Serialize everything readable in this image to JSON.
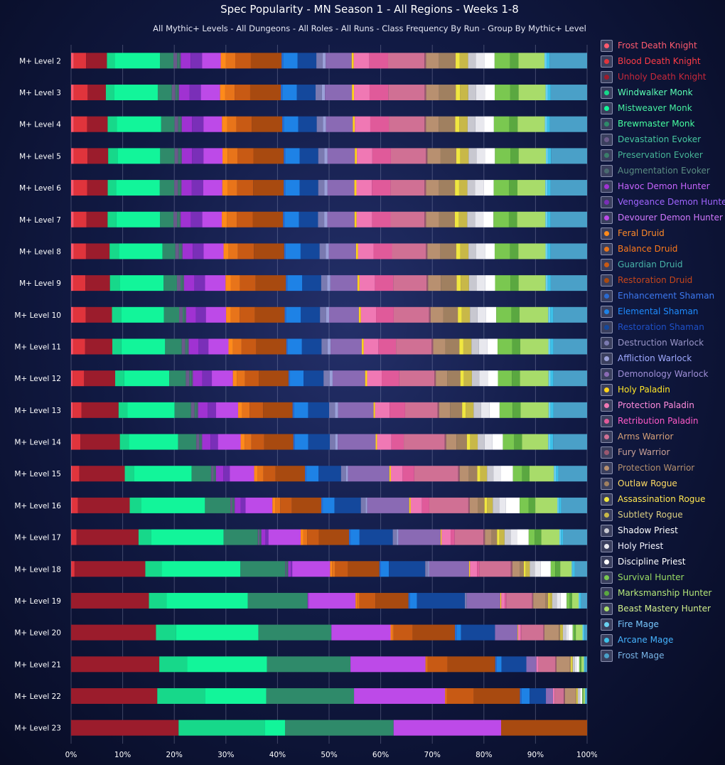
{
  "chart_data": {
    "type": "bar",
    "orientation": "horizontal",
    "stacked": true,
    "normalized": true,
    "title": "Spec Popularity - MN Season 1 - All Regions - Weeks 1-8",
    "subtitle": "All Mythic+ Levels - All Dungeons - All Roles - All Runs - Class Frequency By Run - Group By Mythic+ Level",
    "categories": [
      "M+ Level 2",
      "M+ Level 3",
      "M+ Level 4",
      "M+ Level 5",
      "M+ Level 6",
      "M+ Level 7",
      "M+ Level 8",
      "M+ Level 9",
      "M+ Level 10",
      "M+ Level 11",
      "M+ Level 12",
      "M+ Level 13",
      "M+ Level 14",
      "M+ Level 15",
      "M+ Level 16",
      "M+ Level 17",
      "M+ Level 18",
      "M+ Level 19",
      "M+ Level 20",
      "M+ Level 21",
      "M+ Level 22",
      "M+ Level 23"
    ],
    "xlim": [
      0,
      100
    ],
    "x_ticks": [
      "0%",
      "10%",
      "20%",
      "30%",
      "40%",
      "50%",
      "60%",
      "70%",
      "80%",
      "90%",
      "100%"
    ],
    "grid": true,
    "legend_position": "right",
    "series": [
      {
        "name": "Frost Death Knight",
        "color": "#ff5a6e",
        "values": [
          0.5,
          0.5,
          0.5,
          0.5,
          0.5,
          0.5,
          0.5,
          0.4,
          0.4,
          0.4,
          0.3,
          0.3,
          0.2,
          0.2,
          0.2,
          0.1,
          0.1,
          0,
          0,
          0,
          0,
          0
        ]
      },
      {
        "name": "Blood Death Knight",
        "color": "#e0343c",
        "values": [
          2.4,
          2.7,
          2.6,
          2.7,
          2.6,
          2.5,
          2.4,
          2.4,
          2.5,
          2.4,
          2.3,
          1.8,
          1.7,
          1.5,
          1.2,
          1.0,
          0.6,
          0,
          0,
          0,
          0,
          0
        ]
      },
      {
        "name": "Unholy Death Knight",
        "color": "#9b1c2c",
        "values": [
          4.0,
          3.5,
          4.0,
          4.0,
          4.0,
          4.1,
          4.6,
          4.8,
          5.2,
          5.4,
          6.2,
          7.4,
          8.0,
          9.3,
          10.6,
          12.3,
          14.2,
          15.6,
          16.5,
          16.7,
          15.9,
          20.0
        ]
      },
      {
        "name": "Windwalker Monk",
        "color": "#17d88a",
        "values": [
          1.5,
          1.6,
          1.8,
          1.8,
          1.6,
          1.7,
          1.8,
          1.9,
          1.8,
          1.8,
          1.8,
          1.8,
          1.8,
          1.9,
          2.4,
          2.5,
          3.3,
          3.5,
          3.9,
          5.3,
          8.8,
          16.0
        ]
      },
      {
        "name": "Mistweaver Monk",
        "color": "#12f59a",
        "values": [
          8.7,
          8.4,
          8.6,
          8.3,
          8.5,
          8.5,
          8.5,
          8.6,
          8.5,
          8.7,
          9.0,
          9.4,
          10.0,
          11.8,
          13.0,
          14.4,
          15.8,
          16.3,
          16.0,
          15.1,
          11.3,
          3.8
        ]
      },
      {
        "name": "Brewmaster Monk",
        "color": "#2f8a6a",
        "values": [
          2.6,
          2.7,
          2.6,
          2.8,
          2.8,
          2.6,
          2.5,
          2.6,
          3.0,
          3.3,
          3.3,
          3.3,
          3.7,
          4.0,
          5.2,
          6.8,
          9.0,
          12.0,
          14.2,
          15.8,
          16.2,
          20.2
        ]
      },
      {
        "name": "Devastation Evoker",
        "color": "#6a5a8a",
        "values": [
          0.7,
          0.7,
          0.7,
          0.7,
          0.7,
          0.7,
          0.7,
          0.7,
          0.7,
          0.7,
          0.7,
          0.7,
          0.6,
          0.5,
          0.4,
          0.3,
          0.2,
          0,
          0,
          0,
          0,
          0
        ]
      },
      {
        "name": "Preservation Evoker",
        "color": "#3b7d6a",
        "values": [
          0.4,
          0.4,
          0.4,
          0.4,
          0.4,
          0.4,
          0.4,
          0.4,
          0.4,
          0.4,
          0.4,
          0.4,
          0.3,
          0.3,
          0.3,
          0.2,
          0.2,
          0,
          0,
          0,
          0,
          0
        ]
      },
      {
        "name": "Augmentation Evoker",
        "color": "#4a6a70",
        "values": [
          0.3,
          0.3,
          0.3,
          0.3,
          0.3,
          0.3,
          0.3,
          0.3,
          0.3,
          0.3,
          0.3,
          0.3,
          0.3,
          0.2,
          0.2,
          0.2,
          0.2,
          0,
          0,
          0,
          0,
          0
        ]
      },
      {
        "name": "Havoc Demon Hunter",
        "color": "#a032d2",
        "values": [
          1.9,
          2.0,
          2.0,
          2.0,
          2.0,
          2.0,
          2.0,
          2.0,
          1.9,
          1.9,
          1.9,
          1.9,
          1.7,
          1.5,
          1.2,
          0.8,
          0.5,
          0.2,
          0,
          0,
          0,
          0
        ]
      },
      {
        "name": "Vengeance Demon Hunter",
        "color": "#7a2fb8",
        "values": [
          2.2,
          2.2,
          2.2,
          2.2,
          2.2,
          2.2,
          2.1,
          2.1,
          2.0,
          2.0,
          1.9,
          1.7,
          1.5,
          1.3,
          1.0,
          0.6,
          0.3,
          0,
          0,
          0,
          0,
          0
        ]
      },
      {
        "name": "Devourer Demon Hunter",
        "color": "#bd4ae8",
        "values": [
          3.6,
          3.7,
          3.6,
          3.7,
          3.7,
          3.8,
          3.9,
          4.0,
          4.0,
          4.0,
          4.2,
          4.4,
          4.6,
          5.0,
          5.5,
          6.4,
          7.6,
          9.4,
          11.5,
          14.2,
          16.8,
          20.0
        ]
      },
      {
        "name": "Feral Druid",
        "color": "#ff8a1a",
        "values": [
          1.0,
          1.0,
          1.0,
          1.0,
          1.0,
          1.0,
          1.0,
          1.0,
          0.9,
          0.9,
          0.8,
          0.8,
          0.8,
          0.7,
          0.6,
          0.5,
          0.4,
          0.3,
          0.2,
          0.1,
          0.1,
          0
        ]
      },
      {
        "name": "Balance Druid",
        "color": "#e8741a",
        "values": [
          1.8,
          1.8,
          1.8,
          1.9,
          1.9,
          1.9,
          1.8,
          1.8,
          1.8,
          1.7,
          1.6,
          1.5,
          1.4,
          1.2,
          1.0,
          0.8,
          0.6,
          0.5,
          0.4,
          0.3,
          0.2,
          0
        ]
      },
      {
        "name": "Guardian Druid",
        "color": "#c85a14",
        "values": [
          3.0,
          3.0,
          3.0,
          3.1,
          3.1,
          3.1,
          3.1,
          3.1,
          3.0,
          2.9,
          2.8,
          2.7,
          2.6,
          2.5,
          2.4,
          2.3,
          2.6,
          3.2,
          3.7,
          3.8,
          5.0,
          0
        ]
      },
      {
        "name": "Restoration Druid",
        "color": "#a84a10",
        "values": [
          5.9,
          5.9,
          5.9,
          5.9,
          5.9,
          5.9,
          5.9,
          5.9,
          5.9,
          6.0,
          5.9,
          5.9,
          5.9,
          6.0,
          6.0,
          6.0,
          6.3,
          6.6,
          8.2,
          9.0,
          8.5,
          16.0
        ]
      },
      {
        "name": "Enhancement Shaman",
        "color": "#2a6ad0",
        "values": [
          0.3,
          0.3,
          0.3,
          0.3,
          0.3,
          0.3,
          0.3,
          0.3,
          0.3,
          0.3,
          0.3,
          0.3,
          0.3,
          0.3,
          0.3,
          0.3,
          0.3,
          0.3,
          0.3,
          0.3,
          0.3,
          0
        ]
      },
      {
        "name": "Elemental Shaman",
        "color": "#1e82e6",
        "values": [
          2.8,
          2.8,
          2.8,
          2.8,
          2.8,
          2.8,
          2.9,
          2.9,
          2.9,
          2.8,
          2.7,
          2.8,
          2.7,
          2.5,
          2.4,
          1.8,
          1.6,
          1.4,
          0.9,
          0.9,
          1.5,
          0
        ]
      },
      {
        "name": "Restoration Shaman",
        "color": "#14489c",
        "values": [
          3.6,
          3.6,
          3.6,
          3.6,
          3.6,
          3.7,
          3.7,
          3.7,
          3.8,
          3.9,
          4.0,
          4.2,
          4.4,
          4.6,
          5.4,
          6.6,
          7.3,
          9.6,
          6.6,
          4.7,
          3.0,
          0
        ]
      },
      {
        "name": "Destruction Warlock",
        "color": "#7a7ab0",
        "values": [
          1.2,
          1.2,
          1.2,
          1.2,
          1.2,
          1.2,
          1.2,
          1.2,
          1.2,
          1.2,
          1.2,
          1.2,
          1.1,
          1.0,
          1.0,
          0.8,
          0.6,
          0.4,
          0,
          0,
          0,
          0
        ]
      },
      {
        "name": "Affliction Warlock",
        "color": "#9aa0d8",
        "values": [
          0.6,
          0.6,
          0.6,
          0.6,
          0.6,
          0.6,
          0.6,
          0.6,
          0.6,
          0.6,
          0.6,
          0.6,
          0.5,
          0.4,
          0.3,
          0.3,
          0.2,
          0,
          0,
          0,
          0,
          0
        ]
      },
      {
        "name": "Demonology Warlock",
        "color": "#8a6ab4",
        "values": [
          5.0,
          5.2,
          5.2,
          5.3,
          5.2,
          5.3,
          5.3,
          5.3,
          5.9,
          6.2,
          6.5,
          7.1,
          7.7,
          8.5,
          8.6,
          8.4,
          8.0,
          6.7,
          4.4,
          1.9,
          1.3,
          0
        ]
      },
      {
        "name": "Holy Paladin",
        "color": "#ffd21a",
        "values": [
          0.4,
          0.4,
          0.4,
          0.4,
          0.4,
          0.4,
          0.4,
          0.4,
          0.4,
          0.4,
          0.4,
          0.3,
          0.3,
          0.3,
          0.3,
          0.2,
          0.2,
          0.2,
          0.1,
          0,
          0,
          0
        ]
      },
      {
        "name": "Protection Paladin",
        "color": "#f078b4",
        "values": [
          3.0,
          3.0,
          3.0,
          3.0,
          3.0,
          3.0,
          3.0,
          3.0,
          3.0,
          2.9,
          2.9,
          2.9,
          2.9,
          2.4,
          2.3,
          1.8,
          1.4,
          0.7,
          0.5,
          0.4,
          0.3,
          0
        ]
      },
      {
        "name": "Retribution Paladin",
        "color": "#e05a9a",
        "values": [
          3.6,
          3.6,
          3.6,
          3.6,
          3.6,
          3.6,
          3.6,
          3.6,
          3.5,
          3.5,
          3.5,
          3.1,
          2.5,
          2.4,
          1.5,
          0.8,
          0.5,
          0.3,
          0.1,
          0,
          0,
          0
        ]
      },
      {
        "name": "Arms Warrior",
        "color": "#d07094",
        "values": [
          7.0,
          7.0,
          6.9,
          6.8,
          6.6,
          6.6,
          6.6,
          6.5,
          7.0,
          7.1,
          7.0,
          6.5,
          8.3,
          9.0,
          8.0,
          5.7,
          6.3,
          5.2,
          4.3,
          3.2,
          1.7,
          0
        ]
      },
      {
        "name": "Fury Warrior",
        "color": "#9a5870",
        "values": [
          0.3,
          0.3,
          0.3,
          0.3,
          0.3,
          0.3,
          0.3,
          0.3,
          0.3,
          0.3,
          0.3,
          0.3,
          0.3,
          0.3,
          0.3,
          0.3,
          0.3,
          0.2,
          0.2,
          0.2,
          0.2,
          0
        ]
      },
      {
        "name": "Protection Warrior",
        "color": "#b89070",
        "values": [
          2.5,
          2.5,
          2.5,
          2.5,
          2.5,
          2.5,
          2.5,
          2.5,
          2.5,
          2.4,
          2.3,
          2.2,
          2.1,
          1.9,
          1.6,
          1.3,
          1.5,
          2.5,
          2.8,
          2.5,
          2.0,
          0
        ]
      },
      {
        "name": "Outlaw Rogue",
        "color": "#a08060",
        "values": [
          3.2,
          3.2,
          3.2,
          3.1,
          3.1,
          3.1,
          3.1,
          3.1,
          2.9,
          2.8,
          2.6,
          2.4,
          2.1,
          1.7,
          1.4,
          1.1,
          0.8,
          0.5,
          0.3,
          0.2,
          0.1,
          0
        ]
      },
      {
        "name": "Assassination Rogue",
        "color": "#f0e640",
        "values": [
          0.8,
          0.8,
          0.8,
          0.8,
          0.8,
          0.8,
          0.8,
          0.8,
          0.8,
          0.8,
          0.7,
          0.7,
          0.7,
          0.6,
          0.5,
          0.5,
          0.4,
          0.3,
          0.2,
          0.2,
          0.1,
          0
        ]
      },
      {
        "name": "Subtlety Rogue",
        "color": "#c8b848",
        "values": [
          1.6,
          1.6,
          1.6,
          1.6,
          1.6,
          1.6,
          1.6,
          1.6,
          1.6,
          1.6,
          1.6,
          1.6,
          1.5,
          1.4,
          1.2,
          1.0,
          0.8,
          0.5,
          0.3,
          0.2,
          0.2,
          0
        ]
      },
      {
        "name": "Shadow Priest",
        "color": "#c8c8d0",
        "values": [
          1.5,
          1.5,
          1.5,
          1.5,
          1.5,
          1.5,
          1.5,
          1.5,
          1.5,
          1.5,
          1.5,
          1.5,
          1.4,
          1.3,
          1.3,
          1.2,
          1.0,
          0.9,
          0.6,
          0.4,
          0.3,
          0
        ]
      },
      {
        "name": "Holy Priest",
        "color": "#e8e8ee",
        "values": [
          1.7,
          1.7,
          1.7,
          1.7,
          1.7,
          1.7,
          1.7,
          1.7,
          1.7,
          1.7,
          1.7,
          1.7,
          1.6,
          1.5,
          1.4,
          1.3,
          1.2,
          0.8,
          0.5,
          0.3,
          0.2,
          0
        ]
      },
      {
        "name": "Discipline Priest",
        "color": "#ffffff",
        "values": [
          1.9,
          1.9,
          1.9,
          1.9,
          1.9,
          1.9,
          1.9,
          1.9,
          2.0,
          2.0,
          2.0,
          2.0,
          2.1,
          2.5,
          2.8,
          2.3,
          2.0,
          1.2,
          0.8,
          0.5,
          0.3,
          0
        ]
      },
      {
        "name": "Survival Hunter",
        "color": "#7ac850",
        "values": [
          3.0,
          3.0,
          3.0,
          3.0,
          3.0,
          3.0,
          3.0,
          3.0,
          3.0,
          2.9,
          2.8,
          2.6,
          2.3,
          1.9,
          1.8,
          1.2,
          0.9,
          0.6,
          0.3,
          0.2,
          0.1,
          0
        ]
      },
      {
        "name": "Marksmanship Hunter",
        "color": "#5aa840",
        "values": [
          1.6,
          1.6,
          1.6,
          1.6,
          1.6,
          1.6,
          1.6,
          1.6,
          1.6,
          1.6,
          1.6,
          1.6,
          1.6,
          1.5,
          1.4,
          1.3,
          1.0,
          0.5,
          0.3,
          0.2,
          0.1,
          0
        ]
      },
      {
        "name": "Beast Mastery Hunter",
        "color": "#a8dc6a",
        "values": [
          5.0,
          5.2,
          5.3,
          5.3,
          5.4,
          5.5,
          5.3,
          5.3,
          5.7,
          5.6,
          5.7,
          5.6,
          5.3,
          5.0,
          4.5,
          3.6,
          2.3,
          1.3,
          1.3,
          0.5,
          0.3,
          0
        ]
      },
      {
        "name": "Fire Mage",
        "color": "#6ad0f0",
        "values": [
          0.4,
          0.4,
          0.4,
          0.4,
          0.4,
          0.4,
          0.4,
          0.4,
          0.4,
          0.4,
          0.4,
          0.4,
          0.4,
          0.4,
          0.3,
          0.3,
          0.2,
          0.2,
          0.2,
          0.1,
          0.1,
          0
        ]
      },
      {
        "name": "Arcane Mage",
        "color": "#3cc0e8",
        "values": [
          0.6,
          0.6,
          0.6,
          0.6,
          0.6,
          0.6,
          0.6,
          0.6,
          0.6,
          0.6,
          0.6,
          0.6,
          0.6,
          0.5,
          0.5,
          0.4,
          0.4,
          0.3,
          0.2,
          0.2,
          0.1,
          0
        ]
      },
      {
        "name": "Frost Mage",
        "color": "#4aa0c8",
        "values": [
          7.2,
          7.0,
          7.2,
          7.0,
          7.1,
          7.1,
          7.1,
          7.1,
          6.7,
          6.7,
          6.7,
          6.7,
          6.9,
          5.9,
          5.3,
          4.8,
          2.5,
          1.2,
          0.5,
          0.3,
          0.2,
          0
        ]
      }
    ]
  },
  "legend": {
    "text_colors": [
      "#ff5a6e",
      "#ff3c46",
      "#c8283a",
      "#5affb4",
      "#46f0a0",
      "#46ffa0",
      "#46c8a0",
      "#46b496",
      "#5a8c82",
      "#c864ff",
      "#a064ff",
      "#d278ff",
      "#ff8a28",
      "#ff7a1a",
      "#48b4a8",
      "#c8461a",
      "#3c78f0",
      "#1e8cff",
      "#1e50c8",
      "#9a96c8",
      "#a0aaff",
      "#a090d8",
      "#ffe628",
      "#ff8cdc",
      "#ff5ac8",
      "#d6a078",
      "#c8a096",
      "#b4906e",
      "#ffdc64",
      "#ffe650",
      "#dccf82",
      "#ffffff",
      "#f4f4ff",
      "#ffffff",
      "#9adc64",
      "#b4e678",
      "#d2f08c",
      "#78c8ff",
      "#46b4ff",
      "#78b4e6"
    ]
  }
}
